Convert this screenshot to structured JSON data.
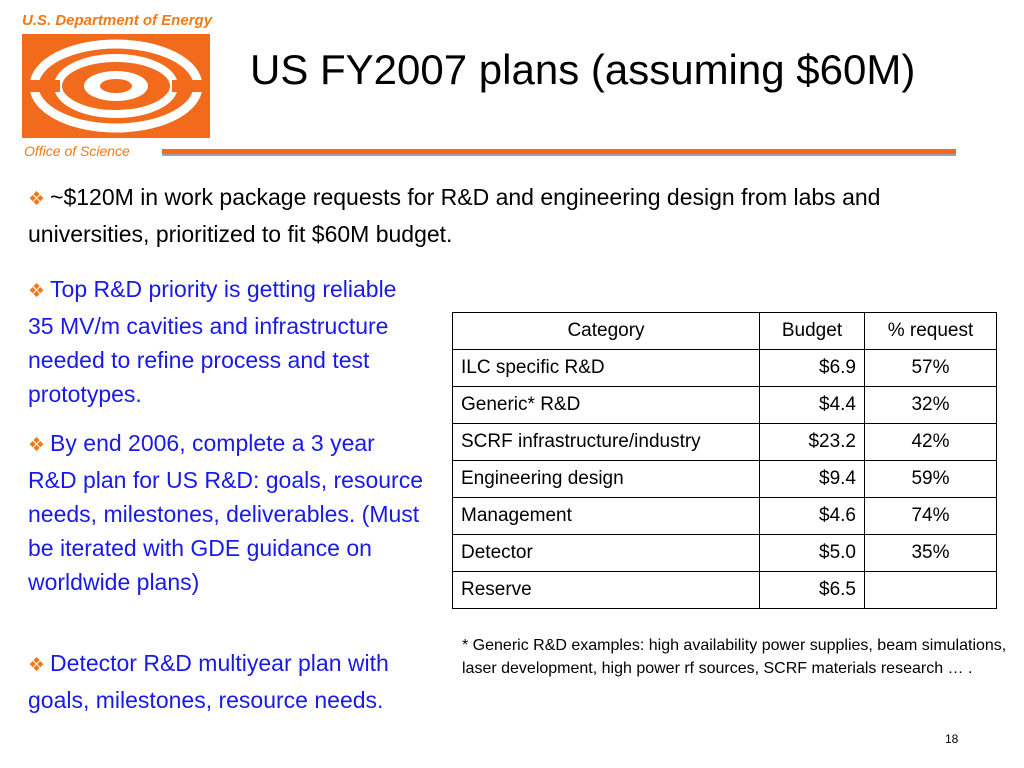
{
  "header": {
    "org_top": "U.S. Department of Energy",
    "org_bottom": "Office of Science",
    "title": "US FY2007 plans (assuming $60M)"
  },
  "colors": {
    "accent_orange": "#f07a18",
    "bullet_blue": "#1a1ae8",
    "rule_orange": "#f26a1b"
  },
  "bullet_icon": "diamond-four-icon",
  "bullets": [
    "~$120M in work package requests for R&D and engineering design from labs and universities, prioritized to fit $60M budget.",
    "Top R&D priority is getting reliable 35 MV/m cavities and infrastructure needed to refine process and test prototypes.",
    "By end 2006, complete a 3 year R&D plan for US R&D: goals, resource needs, milestones, deliverables. (Must be iterated with GDE guidance on worldwide plans)",
    "Detector R&D multiyear plan with goals, milestones, resource needs."
  ],
  "table": {
    "headers": [
      "Category",
      "Budget",
      "% request"
    ],
    "rows": [
      [
        "ILC specific R&D",
        "$6.9",
        "57%"
      ],
      [
        "Generic* R&D",
        "$4.4",
        "32%"
      ],
      [
        "SCRF infrastructure/industry",
        "$23.2",
        "42%"
      ],
      [
        "Engineering design",
        "$9.4",
        "59%"
      ],
      [
        "Management",
        "$4.6",
        "74%"
      ],
      [
        "Detector",
        "$5.0",
        "35%"
      ],
      [
        "Reserve",
        "$6.5",
        ""
      ]
    ]
  },
  "footnote": "* Generic R&D examples: high availability power supplies, beam simulations, laser development, high power rf sources, SCRF materials research … .",
  "page_number": "18"
}
